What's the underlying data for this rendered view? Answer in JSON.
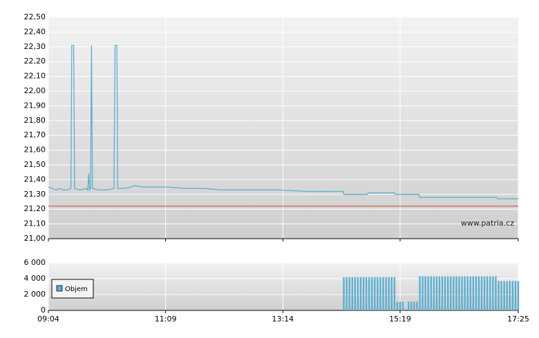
{
  "chart_data": [
    {
      "type": "line",
      "xlim": [
        "09:04",
        "17:25"
      ],
      "ylim": [
        21.0,
        22.5
      ],
      "yticks": [
        {
          "value": 21.0,
          "label": "21,00"
        },
        {
          "value": 21.1,
          "label": "21,10"
        },
        {
          "value": 21.2,
          "label": "21,20"
        },
        {
          "value": 21.3,
          "label": "21,30"
        },
        {
          "value": 21.4,
          "label": "21,40"
        },
        {
          "value": 21.5,
          "label": "21,50"
        },
        {
          "value": 21.6,
          "label": "21,60"
        },
        {
          "value": 21.7,
          "label": "21,70"
        },
        {
          "value": 21.8,
          "label": "21,80"
        },
        {
          "value": 21.9,
          "label": "21,90"
        },
        {
          "value": 22.0,
          "label": "22,00"
        },
        {
          "value": 22.1,
          "label": "22,10"
        },
        {
          "value": 22.2,
          "label": "22,20"
        },
        {
          "value": 22.3,
          "label": "22,30"
        },
        {
          "value": 22.4,
          "label": "22,40"
        },
        {
          "value": 22.5,
          "label": "22,50"
        }
      ],
      "xticks": [
        "09:04",
        "11:09",
        "13:14",
        "15:19",
        "17:25"
      ],
      "grid": true,
      "hline": {
        "value": 21.22,
        "color": "#d04040"
      },
      "watermark": "www.patria.cz",
      "series": [
        {
          "color": "#5aaed0",
          "x": [
            "09:04",
            "09:08",
            "09:12",
            "09:16",
            "09:20",
            "09:24",
            "09:28",
            "09:29",
            "09:31",
            "09:32",
            "09:38",
            "09:44",
            "09:46",
            "09:47",
            "09:48",
            "09:49",
            "09:50",
            "09:51",
            "09:58",
            "10:06",
            "10:14",
            "10:15",
            "10:17",
            "10:18",
            "10:25",
            "10:32",
            "10:36",
            "10:45",
            "10:55",
            "11:10",
            "11:30",
            "11:50",
            "12:10",
            "12:40",
            "13:10",
            "13:40",
            "14:10",
            "14:18",
            "14:19",
            "14:44",
            "14:45",
            "15:13",
            "15:14",
            "15:39",
            "15:40",
            "17:02",
            "17:03",
            "17:25"
          ],
          "values": [
            21.35,
            21.34,
            21.33,
            21.34,
            21.33,
            21.33,
            21.34,
            22.31,
            22.31,
            21.34,
            21.33,
            21.34,
            21.33,
            21.44,
            21.33,
            21.34,
            22.31,
            21.34,
            21.33,
            21.33,
            21.34,
            22.31,
            22.31,
            21.34,
            21.34,
            21.35,
            21.36,
            21.35,
            21.35,
            21.35,
            21.34,
            21.34,
            21.33,
            21.33,
            21.33,
            21.32,
            21.32,
            21.32,
            21.3,
            21.3,
            21.31,
            21.31,
            21.3,
            21.3,
            21.28,
            21.28,
            21.27,
            21.27
          ]
        }
      ]
    },
    {
      "type": "bar",
      "xlim": [
        "09:04",
        "17:25"
      ],
      "ylim": [
        0,
        6000
      ],
      "yticks": [
        0,
        {
          "value": 2000,
          "label": "2 000"
        },
        {
          "value": 4000,
          "label": "4 000"
        },
        {
          "value": 6000,
          "label": "6 000"
        }
      ],
      "xticks": [
        "09:04",
        "11:09",
        "13:14",
        "15:19",
        "17:25"
      ],
      "grid": true,
      "legend": "bottom-left",
      "series": [
        {
          "name": "Objem",
          "color": "#5aaed0",
          "x": [
            "14:19",
            "14:22",
            "14:25",
            "14:28",
            "14:31",
            "14:34",
            "14:37",
            "14:40",
            "14:43",
            "14:46",
            "14:49",
            "14:52",
            "14:55",
            "14:58",
            "15:01",
            "15:04",
            "15:07",
            "15:10",
            "15:13",
            "15:16",
            "15:19",
            "15:22",
            "15:28",
            "15:31",
            "15:34",
            "15:37",
            "15:40",
            "15:43",
            "15:46",
            "15:49",
            "15:52",
            "15:55",
            "15:58",
            "16:01",
            "16:04",
            "16:07",
            "16:10",
            "16:13",
            "16:16",
            "16:19",
            "16:22",
            "16:25",
            "16:28",
            "16:31",
            "16:34",
            "16:37",
            "16:40",
            "16:43",
            "16:46",
            "16:49",
            "16:52",
            "16:55",
            "16:58",
            "17:01",
            "17:04",
            "17:07",
            "17:10",
            "17:13",
            "17:16",
            "17:19",
            "17:22",
            "17:25"
          ],
          "values": [
            4200,
            4200,
            4200,
            4200,
            4200,
            4200,
            4200,
            4200,
            4200,
            4200,
            4200,
            4200,
            4200,
            4200,
            4200,
            4200,
            4200,
            4200,
            4200,
            1100,
            1100,
            1100,
            1100,
            1100,
            1100,
            1100,
            4300,
            4300,
            4300,
            4300,
            4300,
            4300,
            4300,
            4300,
            4300,
            4300,
            4300,
            4300,
            4300,
            4300,
            4300,
            4300,
            4300,
            4300,
            4300,
            4300,
            4300,
            4300,
            4300,
            4300,
            4300,
            4300,
            4300,
            4300,
            3700,
            3700,
            3700,
            3700,
            3700,
            3700,
            3700,
            3700
          ]
        }
      ]
    }
  ]
}
